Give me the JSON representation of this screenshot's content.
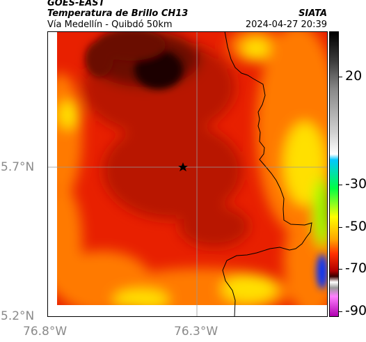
{
  "header": {
    "source": "GOES-EAST",
    "product": "Temperatura de Brillo CH13",
    "region": "Vía Medellín - Quibdó 50km",
    "agency": "SIATA",
    "datetime": "2024-04-27 20:39"
  },
  "axes": {
    "lat_ticks": [
      "5.7°N",
      "5.2°N"
    ],
    "lon_ticks": [
      "76.8°W",
      "76.3°W"
    ]
  },
  "colorbar": {
    "labels": [
      "20",
      "-30",
      "-50",
      "-70",
      "-90"
    ],
    "colors": [
      "#000000",
      "#3a3a3a",
      "#888888",
      "#cfcfcf",
      "#ffffff",
      "#00c8ff",
      "#00ff44",
      "#ffff00",
      "#ffa500",
      "#ff3000",
      "#b00000",
      "#3a0000",
      "#ffffff",
      "#9a9a9a",
      "#ff80ff",
      "#b000b0"
    ]
  },
  "map": {
    "marker": "star",
    "fill_colors": {
      "dark": "#1a0000",
      "deep": "#6b0a00",
      "core": "#b81400",
      "red": "#e82000",
      "orange": "#ff7a00",
      "yellow": "#ffe000",
      "green": "#8cff00",
      "blue": "#0030ff"
    }
  }
}
